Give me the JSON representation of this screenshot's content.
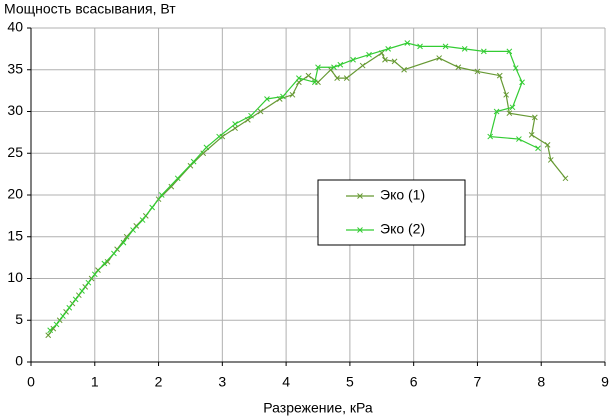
{
  "chart_data": {
    "type": "line",
    "ylabel": "Мощность всасывания, Вт",
    "xlabel": "Разрежение, кРа",
    "xlim": [
      0,
      9
    ],
    "xticks": [
      0,
      1,
      2,
      3,
      4,
      5,
      6,
      7,
      8,
      9
    ],
    "ylim": [
      0,
      40
    ],
    "yticks": [
      0,
      5,
      10,
      15,
      20,
      25,
      30,
      35,
      40
    ],
    "grid": true,
    "legend": "center",
    "marker": "x",
    "series": [
      {
        "name": "Эко (1)",
        "color": "#669933",
        "x": [
          0.27,
          0.35,
          0.45,
          0.55,
          0.65,
          0.75,
          0.85,
          0.95,
          1.05,
          1.2,
          1.35,
          1.5,
          1.65,
          1.8,
          2.0,
          2.2,
          2.5,
          2.7,
          3.0,
          3.2,
          3.4,
          3.6,
          3.9,
          4.1,
          4.2,
          4.35,
          4.5,
          4.7,
          4.8,
          4.95,
          5.2,
          5.5,
          5.55,
          5.7,
          5.85,
          6.4,
          6.7,
          7.0,
          7.35,
          7.45,
          7.5,
          7.9,
          7.85,
          8.1,
          8.15,
          8.38
        ],
        "values": [
          3.2,
          4,
          5,
          6,
          7,
          8,
          9,
          10,
          11,
          12,
          13.5,
          15,
          16.3,
          17.5,
          19.5,
          21,
          23.5,
          25,
          27,
          28,
          29,
          30,
          31.5,
          32,
          33.5,
          34.3,
          33.5,
          35,
          34,
          34,
          35.5,
          37,
          36.2,
          36,
          35,
          36.4,
          35.3,
          34.8,
          34.3,
          32,
          29.8,
          29.3,
          27.2,
          26,
          24.2,
          22
        ]
      },
      {
        "name": "Эко (2)",
        "color": "#33cc33",
        "x": [
          0.3,
          0.4,
          0.5,
          0.6,
          0.7,
          0.8,
          0.9,
          1.0,
          1.15,
          1.3,
          1.45,
          1.6,
          1.75,
          1.9,
          2.05,
          2.3,
          2.55,
          2.75,
          2.95,
          3.2,
          3.45,
          3.7,
          3.95,
          4.2,
          4.45,
          4.5,
          4.75,
          4.85,
          5.05,
          5.3,
          5.6,
          5.9,
          6.1,
          6.5,
          6.8,
          7.1,
          7.5,
          7.6,
          7.7,
          7.55,
          7.3,
          7.2,
          7.65,
          7.95
        ],
        "values": [
          3.8,
          4.5,
          5.5,
          6.5,
          7.5,
          8.5,
          9.5,
          10.5,
          11.8,
          13,
          14.3,
          15.8,
          17,
          18.5,
          20,
          22,
          24,
          25.7,
          27,
          28.5,
          29.5,
          31.5,
          31.8,
          34,
          33.5,
          35.3,
          35.3,
          35.6,
          36.2,
          36.8,
          37.5,
          38.2,
          37.8,
          37.8,
          37.5,
          37.2,
          37.2,
          35.2,
          33.5,
          30.5,
          30,
          27,
          26.7,
          25.6
        ]
      }
    ]
  }
}
